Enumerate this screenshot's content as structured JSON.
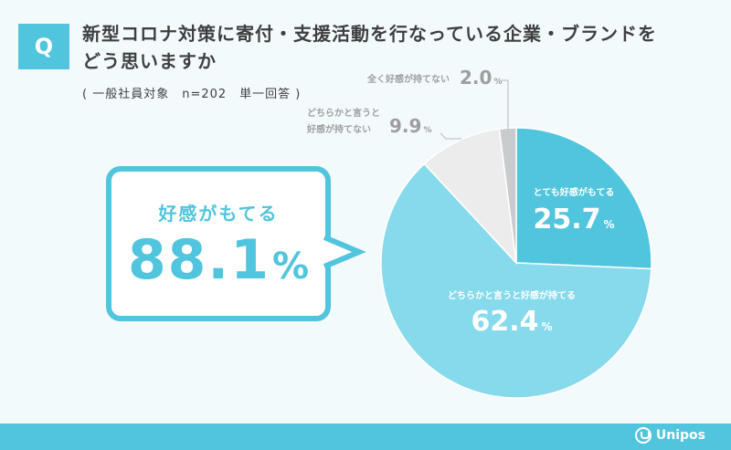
{
  "question": {
    "badge": "Q",
    "title_line1": "新型コロナ対策に寄付・支援活動を行なっている企業・ブランドを",
    "title_line2": "どう思いますか",
    "note": "( 一般社員対象　n=202　単一回答 )"
  },
  "callout": {
    "label": "好感がもてる",
    "value": "88.1",
    "unit": "%"
  },
  "chart_data": {
    "type": "pie",
    "title": "",
    "slices": [
      {
        "label": "とても好感がもてる",
        "value": 25.7,
        "color": "#50c5dd",
        "label_color": "#ffffff"
      },
      {
        "label": "どちらかと言うと好感が持てる",
        "value": 62.4,
        "color": "#86daec",
        "label_color": "#ffffff"
      },
      {
        "label": "どちらかと言うと好感が持てない",
        "value": 9.9,
        "color": "#ececec",
        "label_color": "#9e9e9e"
      },
      {
        "label": "全く好感が持てない",
        "value": 2.0,
        "color": "#c9cccd",
        "label_color": "#9e9e9e"
      }
    ],
    "percent_unit": "%",
    "start": "12 o'clock, clockwise",
    "legend": "none"
  },
  "footer": {
    "brand": "Unipos",
    "bar_color": "#50c5dd"
  }
}
